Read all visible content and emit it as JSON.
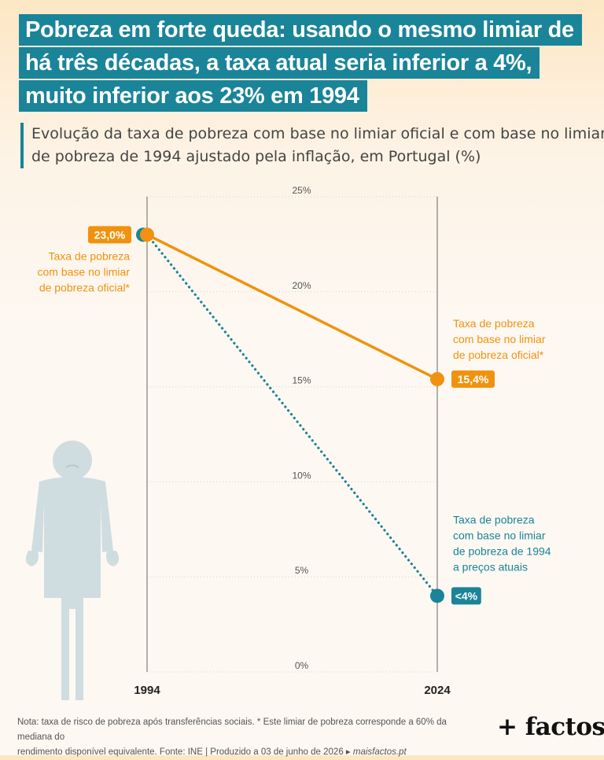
{
  "title": {
    "lines": [
      "Pobreza em forte queda: usando o mesmo limiar de",
      "há três décadas, a taxa atual seria inferior a 4%,",
      "muito inferior aos 23% em 1994"
    ]
  },
  "subtitle": {
    "lines": [
      "Evolução da taxa de pobreza com base no limiar oficial e com base no limiar",
      "de pobreza de 1994 ajustado pela inflação, em Portugal (%)"
    ]
  },
  "chart_data": {
    "type": "line",
    "x": [
      1994,
      2024
    ],
    "x_tick_labels": [
      "1994",
      "2024"
    ],
    "ylim": [
      0,
      25
    ],
    "y_ticks": [
      0,
      5,
      10,
      15,
      20,
      25
    ],
    "y_tick_labels": [
      "0%",
      "5%",
      "10%",
      "15%",
      "20%",
      "25%"
    ],
    "grid": true,
    "series": [
      {
        "key": "official",
        "values": [
          23.0,
          15.4
        ],
        "color": "#f0920f",
        "style": "solid",
        "value_labels": [
          "23,0%",
          "15,4%"
        ],
        "annotation_start": [
          "Taxa de pobreza",
          "com base no limiar",
          "de pobreza oficial*"
        ],
        "annotation_end": [
          "Taxa de pobreza",
          "com base no limiar",
          "de pobreza oficial*"
        ]
      },
      {
        "key": "threshold_1994",
        "values": [
          23.0,
          4.0
        ],
        "color": "#1a8499",
        "style": "dotted",
        "value_labels": [
          "",
          "<4%"
        ],
        "annotation_end": [
          "Taxa de pobreza",
          "com base no limiar",
          "de pobreza de 1994",
          "a preços atuais"
        ]
      }
    ]
  },
  "colors": {
    "accent": "#1a8499",
    "orange": "#f0920f",
    "figure": "#cfdde1"
  },
  "illustration": "sad-person-empty-pockets-icon",
  "note": {
    "line1": "Nota: taxa de risco de pobreza após transferências sociais. * Este limiar de pobreza corresponde a 60% da mediana do",
    "line2_prefix": "rendimento disponível equivalente. Fonte: INE | Produzido a 03 de junho de 2026 ▸ ",
    "link": "maisfactos.pt"
  },
  "brand": "+ factos"
}
